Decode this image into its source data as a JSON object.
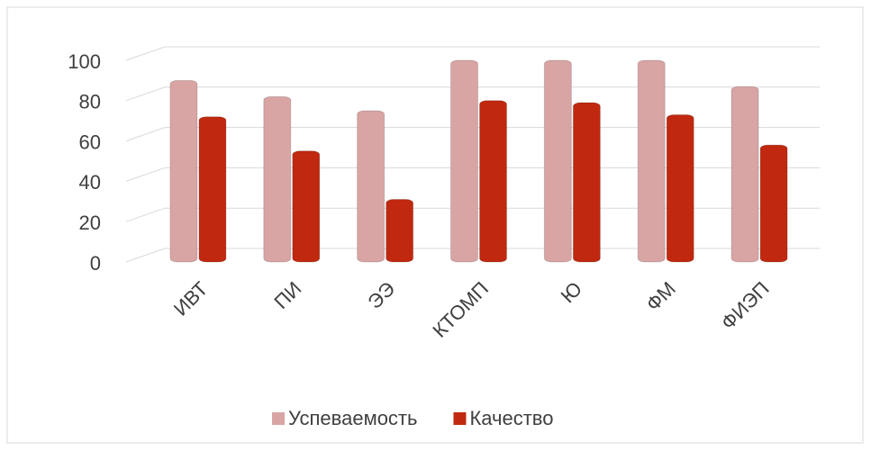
{
  "chart_data": {
    "type": "bar",
    "categories": [
      "ИВТ",
      "ПИ",
      "ЭЭ",
      "КТОМП",
      "Ю",
      "ФМ",
      "ФИЭП"
    ],
    "series": [
      {
        "name": "Успеваемость",
        "color": "#d9a4a4",
        "values": [
          90,
          82,
          75,
          100,
          100,
          100,
          87
        ]
      },
      {
        "name": "Качество",
        "color": "#c0280f",
        "values": [
          72,
          55,
          31,
          80,
          79,
          73,
          58
        ]
      }
    ],
    "ylim": [
      0,
      100
    ],
    "yticks": [
      0,
      20,
      40,
      60,
      80,
      100
    ],
    "grid": true,
    "legend": "bottom"
  }
}
